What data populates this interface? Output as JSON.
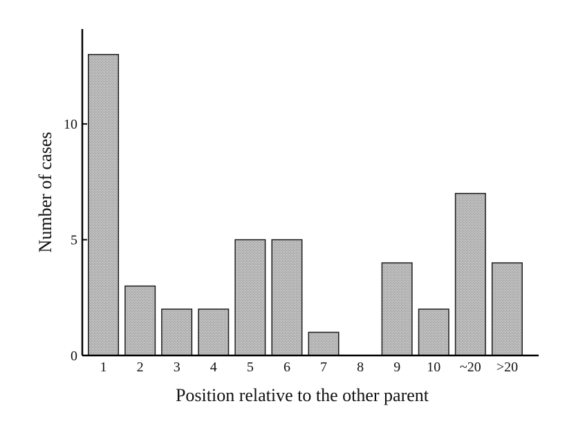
{
  "chart_data": {
    "type": "bar",
    "title": "",
    "xlabel": "Position relative to the other parent",
    "ylabel": "Number of cases",
    "categories": [
      "1",
      "2",
      "3",
      "4",
      "5",
      "6",
      "7",
      "8",
      "9",
      "10",
      "~20",
      ">20"
    ],
    "values": [
      13,
      3,
      2,
      2,
      5,
      5,
      1,
      0,
      4,
      2,
      7,
      4
    ],
    "ylim": [
      0,
      14.1
    ],
    "yticks": [
      0,
      5,
      10
    ],
    "ytick_labels": [
      "0",
      "5",
      "10"
    ],
    "grid": false,
    "legend": "none",
    "colors": {
      "bar_fill": "#b4b4b4",
      "bar_stroke": "#1a1a1a",
      "axis": "#000000"
    }
  }
}
